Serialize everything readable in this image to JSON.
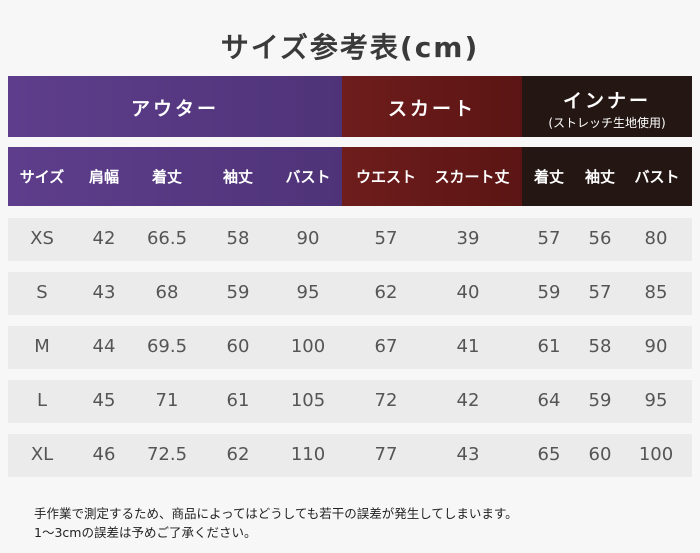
{
  "title": "サイズ参考表(cm)",
  "groups": {
    "outer": "アウター",
    "skirt": "スカート",
    "inner": "インナー",
    "inner_note": "(ストレッチ生地使用)"
  },
  "columns": [
    "サイズ",
    "肩幅",
    "着丈",
    "袖丈",
    "バスト",
    "ウエスト",
    "スカート丈",
    "着丈",
    "袖丈",
    "バスト"
  ],
  "rows": [
    [
      "XS",
      "42",
      "66.5",
      "58",
      "90",
      "57",
      "39",
      "57",
      "56",
      "80"
    ],
    [
      "S",
      "43",
      "68",
      "59",
      "95",
      "62",
      "40",
      "59",
      "57",
      "85"
    ],
    [
      "M",
      "44",
      "69.5",
      "60",
      "100",
      "67",
      "41",
      "61",
      "58",
      "90"
    ],
    [
      "L",
      "45",
      "71",
      "61",
      "105",
      "72",
      "42",
      "64",
      "59",
      "95"
    ],
    [
      "XL",
      "46",
      "72.5",
      "62",
      "110",
      "77",
      "43",
      "65",
      "60",
      "100"
    ]
  ],
  "footer": {
    "line1": "手作業で測定するため、商品によってはどうしても若干の誤差が発生してしまいます。",
    "line2": "1～3cmの誤差は予めご了承ください。"
  }
}
